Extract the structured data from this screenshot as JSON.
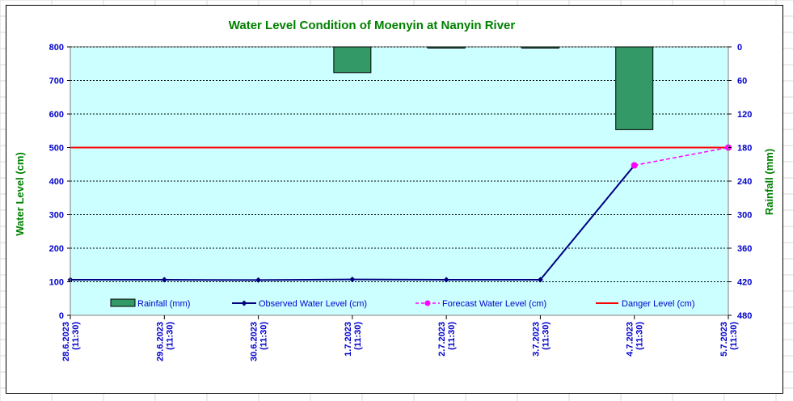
{
  "chart_data": {
    "type": "bar+line",
    "title": "Water Level Condition of Moenyin at Nanyin River",
    "ylabel": "Water Level (cm)",
    "y2label": "Rainfall (mm)",
    "ylim": [
      0,
      800
    ],
    "y_ticks": [
      "0",
      "100",
      "200",
      "300",
      "400",
      "500",
      "600",
      "700",
      "800"
    ],
    "y2lim": [
      0,
      480
    ],
    "y2_inverted": true,
    "y2_ticks": [
      "480",
      "420",
      "360",
      "300",
      "240",
      "180",
      "120",
      "60",
      "0"
    ],
    "x_ticks": [
      {
        "date": "28.6.2023",
        "time": "(11:30)"
      },
      {
        "date": "29.6.2023",
        "time": "(11:30)"
      },
      {
        "date": "30.6.2023",
        "time": "(11:30)"
      },
      {
        "date": "1.7.2023",
        "time": "(11:30)"
      },
      {
        "date": "2.7.2023",
        "time": "(11:30)"
      },
      {
        "date": "3.7.2023",
        "time": "(11:30)"
      },
      {
        "date": "4.7.2023",
        "time": "(11:30)"
      },
      {
        "date": "5.7.2023",
        "time": "(11:30)"
      }
    ],
    "grid": true,
    "legend_position": "bottom-inside",
    "rainfall": {
      "name": "Rainfall (mm)",
      "values": [
        0,
        0,
        0,
        46,
        1,
        1,
        148,
        0
      ],
      "color": "#339966"
    },
    "observed": {
      "name": "Observed Water Level (cm)",
      "values": [
        106,
        106,
        105,
        107,
        106,
        106
      ],
      "color": "#000080"
    },
    "forecast": {
      "name": "Forecast Water Level (cm)",
      "points": [
        [
          6,
          447
        ],
        [
          7,
          500
        ]
      ],
      "color": "#ff00ff"
    },
    "danger": {
      "name": "Danger Level (cm)",
      "value": 500,
      "color": "#ff0000"
    },
    "colors": {
      "plot_bg": "#ccffff",
      "title": "#008000",
      "left_axis": "#0000cc",
      "right_axis_label": "#008000"
    }
  }
}
